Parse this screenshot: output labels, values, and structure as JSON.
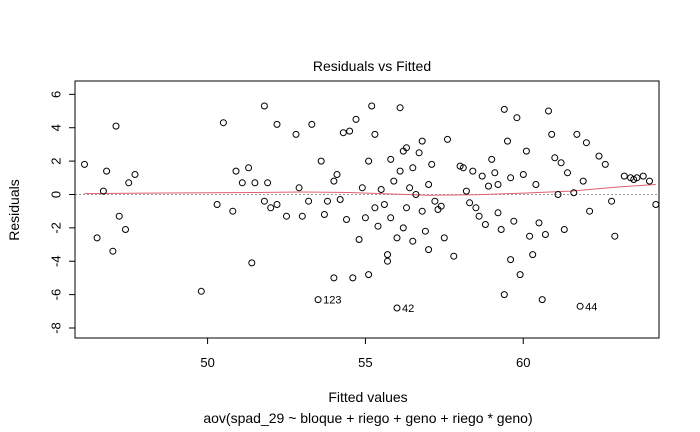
{
  "chart_data": {
    "type": "scatter",
    "title": "Residuals vs Fitted",
    "xlabel": "Fitted values",
    "ylabel": "Residuals",
    "subtitle": "aov(spad_29 ~ bloque + riego + geno + riego * geno)",
    "xlim": [
      45.8,
      64.3
    ],
    "ylim": [
      -8.6,
      6.8
    ],
    "xticks": [
      50,
      55,
      60
    ],
    "yticks": [
      -8,
      -6,
      -4,
      -2,
      0,
      2,
      4,
      6
    ],
    "reference_line": 0,
    "points": [
      [
        46.1,
        1.8
      ],
      [
        46.5,
        -2.6
      ],
      [
        46.7,
        0.2
      ],
      [
        46.8,
        1.4
      ],
      [
        47.0,
        -3.4
      ],
      [
        47.1,
        4.1
      ],
      [
        47.2,
        -1.3
      ],
      [
        47.4,
        -2.1
      ],
      [
        47.5,
        0.7
      ],
      [
        47.7,
        1.2
      ],
      [
        49.8,
        -5.8
      ],
      [
        50.3,
        -0.6
      ],
      [
        50.5,
        4.3
      ],
      [
        50.8,
        -1.0
      ],
      [
        50.9,
        1.4
      ],
      [
        51.1,
        0.7
      ],
      [
        51.3,
        1.6
      ],
      [
        51.4,
        -4.1
      ],
      [
        51.5,
        0.7
      ],
      [
        51.8,
        5.3
      ],
      [
        51.8,
        -0.4
      ],
      [
        51.9,
        0.7
      ],
      [
        52.0,
        -0.8
      ],
      [
        52.2,
        4.2
      ],
      [
        52.2,
        -0.6
      ],
      [
        52.5,
        -1.3
      ],
      [
        52.8,
        3.6
      ],
      [
        52.9,
        0.4
      ],
      [
        53.0,
        -1.3
      ],
      [
        53.2,
        -0.4
      ],
      [
        53.3,
        4.2
      ],
      [
        53.5,
        -6.3
      ],
      [
        53.6,
        2.0
      ],
      [
        53.7,
        -1.2
      ],
      [
        53.8,
        -0.4
      ],
      [
        54.0,
        0.8
      ],
      [
        54.0,
        -5.0
      ],
      [
        54.1,
        1.2
      ],
      [
        54.2,
        -0.3
      ],
      [
        54.3,
        3.7
      ],
      [
        54.4,
        -1.5
      ],
      [
        54.5,
        3.8
      ],
      [
        54.6,
        -5.0
      ],
      [
        54.7,
        4.5
      ],
      [
        54.8,
        -2.7
      ],
      [
        54.9,
        0.4
      ],
      [
        55.0,
        -1.4
      ],
      [
        55.1,
        2.0
      ],
      [
        55.1,
        -4.8
      ],
      [
        55.2,
        5.3
      ],
      [
        55.3,
        -0.8
      ],
      [
        55.3,
        3.6
      ],
      [
        55.4,
        -1.9
      ],
      [
        55.5,
        0.3
      ],
      [
        55.6,
        -0.6
      ],
      [
        55.7,
        -3.6
      ],
      [
        55.7,
        -4.0
      ],
      [
        55.8,
        -1.4
      ],
      [
        55.8,
        2.1
      ],
      [
        55.9,
        0.8
      ],
      [
        56.0,
        -2.6
      ],
      [
        56.0,
        -6.8
      ],
      [
        56.1,
        5.2
      ],
      [
        56.1,
        1.4
      ],
      [
        56.2,
        2.6
      ],
      [
        56.2,
        -2.0
      ],
      [
        56.3,
        2.8
      ],
      [
        56.3,
        -0.8
      ],
      [
        56.4,
        0.4
      ],
      [
        56.5,
        1.6
      ],
      [
        56.5,
        -2.8
      ],
      [
        56.6,
        0.0
      ],
      [
        56.7,
        2.5
      ],
      [
        56.8,
        3.2
      ],
      [
        56.8,
        -1.0
      ],
      [
        56.9,
        -2.2
      ],
      [
        57.0,
        0.6
      ],
      [
        57.0,
        -3.3
      ],
      [
        57.1,
        1.8
      ],
      [
        57.2,
        -0.4
      ],
      [
        57.3,
        -0.9
      ],
      [
        57.4,
        -0.7
      ],
      [
        57.5,
        -2.6
      ],
      [
        57.6,
        3.3
      ],
      [
        57.8,
        -3.7
      ],
      [
        58.0,
        1.7
      ],
      [
        58.1,
        1.6
      ],
      [
        58.2,
        0.2
      ],
      [
        58.3,
        -0.5
      ],
      [
        58.4,
        1.4
      ],
      [
        58.5,
        -0.8
      ],
      [
        58.6,
        -1.3
      ],
      [
        58.7,
        1.1
      ],
      [
        58.8,
        -1.8
      ],
      [
        58.9,
        0.5
      ],
      [
        59.0,
        2.1
      ],
      [
        59.1,
        1.3
      ],
      [
        59.2,
        0.6
      ],
      [
        59.2,
        -1.1
      ],
      [
        59.3,
        -2.1
      ],
      [
        59.4,
        5.1
      ],
      [
        59.4,
        -6.0
      ],
      [
        59.5,
        3.2
      ],
      [
        59.6,
        -3.9
      ],
      [
        59.6,
        1.0
      ],
      [
        59.7,
        -1.6
      ],
      [
        59.8,
        4.6
      ],
      [
        59.9,
        -4.8
      ],
      [
        60.0,
        1.2
      ],
      [
        60.1,
        2.6
      ],
      [
        60.2,
        -2.5
      ],
      [
        60.3,
        -3.6
      ],
      [
        60.4,
        0.6
      ],
      [
        60.5,
        -1.7
      ],
      [
        60.6,
        -6.3
      ],
      [
        60.7,
        -2.4
      ],
      [
        60.8,
        5.0
      ],
      [
        60.9,
        3.6
      ],
      [
        61.0,
        2.2
      ],
      [
        61.1,
        0.0
      ],
      [
        61.2,
        1.9
      ],
      [
        61.3,
        -2.1
      ],
      [
        61.4,
        1.3
      ],
      [
        61.6,
        0.1
      ],
      [
        61.7,
        3.6
      ],
      [
        61.8,
        -6.7
      ],
      [
        61.9,
        0.8
      ],
      [
        62.0,
        3.1
      ],
      [
        62.1,
        -1.0
      ],
      [
        62.4,
        2.3
      ],
      [
        62.6,
        1.8
      ],
      [
        62.8,
        -0.4
      ],
      [
        62.9,
        -2.5
      ],
      [
        63.2,
        1.1
      ],
      [
        63.4,
        1.0
      ],
      [
        63.5,
        0.9
      ],
      [
        63.6,
        1.0
      ],
      [
        63.8,
        1.1
      ],
      [
        64.0,
        0.8
      ],
      [
        64.2,
        -0.6
      ]
    ],
    "smooth_line": [
      [
        46.1,
        0.05
      ],
      [
        48.0,
        0.08
      ],
      [
        50.0,
        0.1
      ],
      [
        51.5,
        0.12
      ],
      [
        53.0,
        0.15
      ],
      [
        54.5,
        0.12
      ],
      [
        55.5,
        0.05
      ],
      [
        57.0,
        -0.05
      ],
      [
        58.5,
        -0.02
      ],
      [
        60.0,
        0.08
      ],
      [
        61.5,
        0.2
      ],
      [
        63.0,
        0.45
      ],
      [
        64.2,
        0.6
      ]
    ],
    "annotations": [
      {
        "label": "123",
        "x": 53.5,
        "y": -6.3
      },
      {
        "label": "42",
        "x": 56.0,
        "y": -6.8
      },
      {
        "label": "44",
        "x": 61.8,
        "y": -6.7
      }
    ],
    "colors": {
      "points": "#000000",
      "smooth": "#e06070",
      "reference": "#9a9a9a"
    }
  }
}
